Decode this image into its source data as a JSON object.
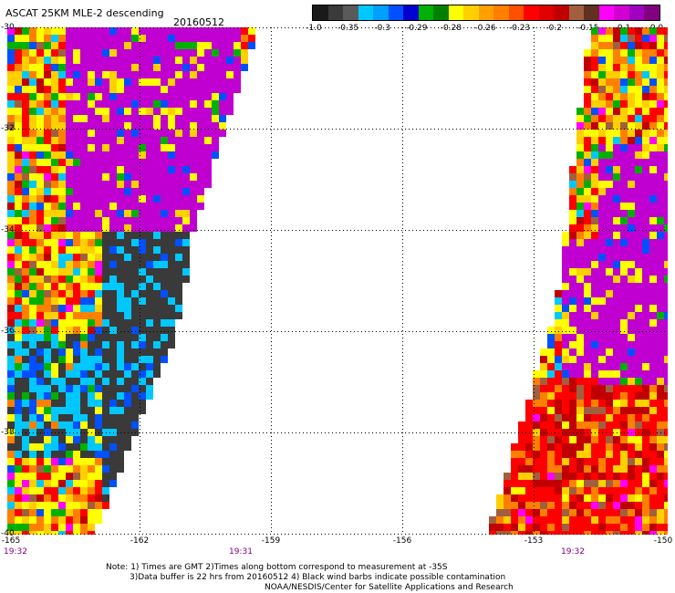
{
  "header": {
    "title": "ASCAT 25KM MLE-2 descending",
    "date": "20160512"
  },
  "colorbar": {
    "labels": [
      "-1.0",
      "-0.35",
      "-0.3",
      "-0.29",
      "-0.28",
      "-0.26",
      "-0.23",
      "-0.2",
      "-0.15",
      "-0.1",
      "0.0"
    ],
    "colors": [
      "#1a1a1a",
      "#3a3a3a",
      "#5a5a5a",
      "#00c8ff",
      "#00a0ff",
      "#0050ff",
      "#0000d0",
      "#00b000",
      "#008000",
      "#ffff00",
      "#ffd000",
      "#ffa000",
      "#ff8000",
      "#ff5000",
      "#ff0000",
      "#e00000",
      "#c00000",
      "#a06040",
      "#603020",
      "#ff00ff",
      "#d000d0",
      "#a000c0",
      "#800080"
    ]
  },
  "axes": {
    "y_labels": [
      "-30",
      "-32",
      "-34",
      "-36",
      "-38",
      "-40"
    ],
    "x_labels": [
      "-165",
      "-162",
      "-159",
      "-156",
      "-153",
      "-150"
    ],
    "lat_range": [
      -40,
      -30
    ],
    "lon_range": [
      -165,
      -150
    ]
  },
  "times": [
    "19:32",
    "19:31",
    "19:32"
  ],
  "notes": {
    "line1": "Note: 1) Times are GMT 2)Times along bottom correspond to measurement at -35S",
    "line2": "3)Data buffer is 22 hrs from 20160512 4) Black wind barbs indicate possible contamination",
    "line3": "NOAA/NESDIS/Center for Satellite Applications and Research"
  },
  "map_colors": {
    "gray": "#3a3a3a",
    "cyan": "#00c8ff",
    "blue": "#0050ff",
    "darkblue": "#0000d0",
    "green": "#00b000",
    "yellow": "#ffff00",
    "gold": "#ffd000",
    "orange": "#ff8000",
    "red": "#ff0000",
    "darkred": "#c00000",
    "brown": "#a06040",
    "magenta": "#ff00ff",
    "purple": "#c000d0"
  }
}
